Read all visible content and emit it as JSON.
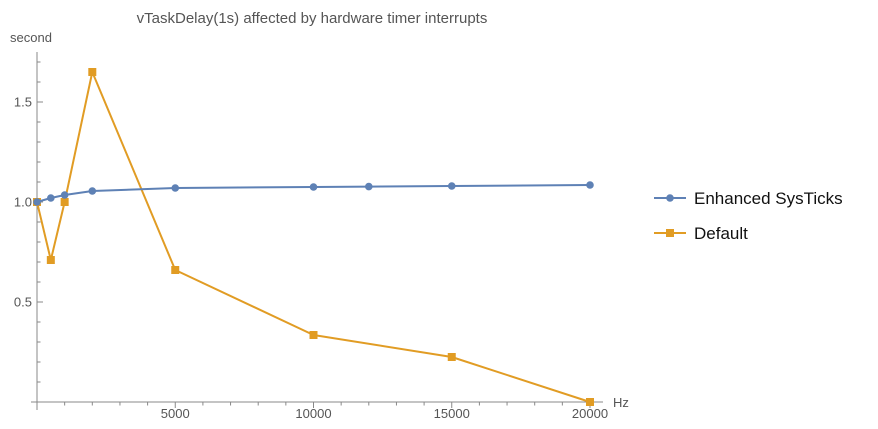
{
  "chart_data": {
    "type": "line",
    "title": "vTaskDelay(1s) affected by hardware timer interrupts",
    "xlabel": "Hz",
    "ylabel": "second",
    "xlim": [
      0,
      20000
    ],
    "ylim": [
      0,
      1.75
    ],
    "xticks": [
      5000,
      10000,
      15000,
      20000
    ],
    "xtick_labels": [
      "5000",
      "10000",
      "15000",
      "20000"
    ],
    "yticks": [
      0.5,
      1.0,
      1.5
    ],
    "ytick_labels": [
      "0.5",
      "1.0",
      "1.5"
    ],
    "grid": false,
    "legend_position": "right",
    "series": [
      {
        "name": "Enhanced SysTicks",
        "color": "#5E81B5",
        "marker": "circle",
        "x": [
          0,
          500,
          1000,
          2000,
          5000,
          10000,
          12000,
          15000,
          20000
        ],
        "y": [
          1.0,
          1.02,
          1.035,
          1.055,
          1.07,
          1.075,
          1.077,
          1.08,
          1.085
        ]
      },
      {
        "name": "Default",
        "color": "#E19C24",
        "marker": "square",
        "x": [
          0,
          500,
          1000,
          2000,
          5000,
          10000,
          15000,
          20000
        ],
        "y": [
          1.0,
          0.71,
          1.0,
          1.65,
          0.66,
          0.335,
          0.225,
          0.0
        ]
      }
    ]
  }
}
